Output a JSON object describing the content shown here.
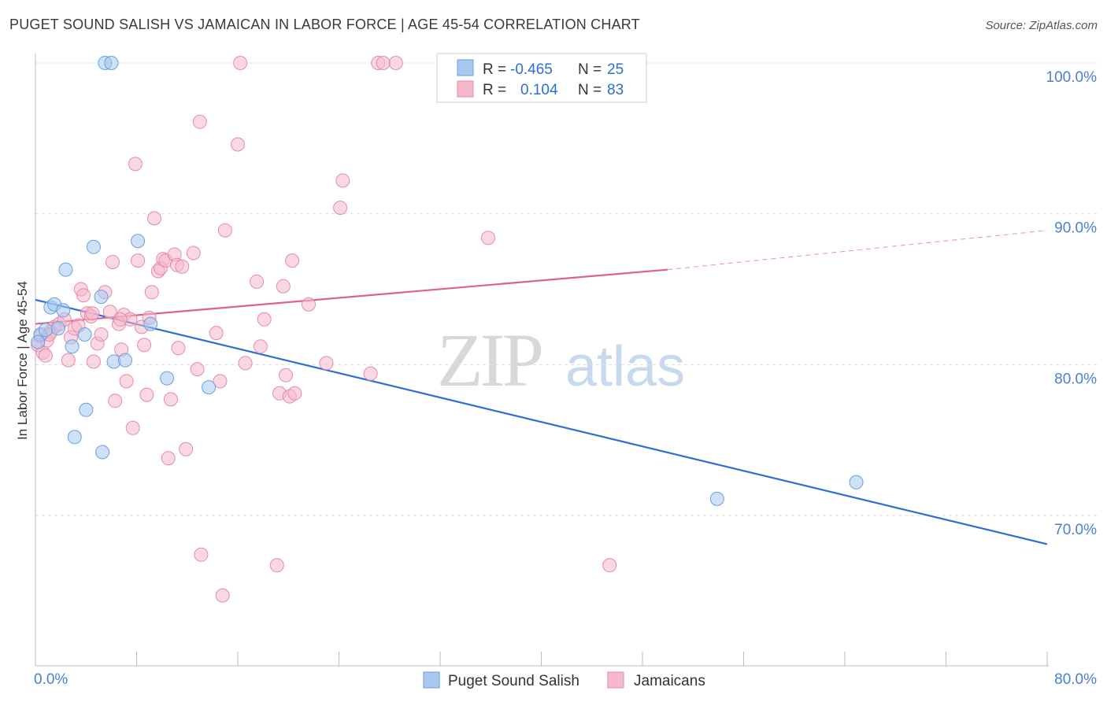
{
  "title": "PUGET SOUND SALISH VS JAMAICAN IN LABOR FORCE | AGE 45-54 CORRELATION CHART",
  "source": "Source: ZipAtlas.com",
  "watermark": {
    "zip": "ZIP",
    "atlas": "atlas"
  },
  "colors": {
    "blue_fill": "#a8c8f0",
    "blue_stroke": "#6a9fe0",
    "blue_line": "#2b6fd4",
    "pink_fill": "#f6b8cc",
    "pink_stroke": "#e88aa8",
    "pink_line": "#e0608c",
    "axis_text": "#4a7fd6",
    "grid": "#dddddd"
  },
  "legend_top": [
    {
      "r_label": "R =",
      "r_value": "-0.465",
      "n_label": "N =",
      "n_value": "25"
    },
    {
      "r_label": "R =",
      "r_value": "0.104",
      "n_label": "N =",
      "n_value": "83"
    }
  ],
  "legend_bottom": [
    "Puget Sound Salish",
    "Jamaicans"
  ],
  "chart_data": {
    "type": "scatter",
    "title": "PUGET SOUND SALISH VS JAMAICAN IN LABOR FORCE | AGE 45-54 CORRELATION CHART",
    "xlabel": "",
    "ylabel": "In Labor Force | Age 45-54",
    "xlim": [
      0,
      80
    ],
    "ylim": [
      61,
      104
    ],
    "x_tick_labels": [
      "0.0%",
      "80.0%"
    ],
    "y_ticks": [
      70,
      80,
      90,
      100
    ],
    "y_tick_labels": [
      "70.0%",
      "80.0%",
      "90.0%",
      "100.0%"
    ],
    "grid": true,
    "legend_placement": "bottom",
    "series": [
      {
        "name": "Puget Sound Salish",
        "color": "#a8c8f0",
        "points": [
          [
            0.4,
            82.0
          ],
          [
            0.8,
            82.3
          ],
          [
            1.2,
            83.8
          ],
          [
            1.5,
            84.0
          ],
          [
            1.8,
            82.4
          ],
          [
            2.2,
            83.6
          ],
          [
            2.4,
            86.3
          ],
          [
            2.9,
            81.2
          ],
          [
            3.1,
            75.2
          ],
          [
            3.9,
            82.0
          ],
          [
            4.0,
            77.0
          ],
          [
            4.6,
            87.8
          ],
          [
            5.2,
            84.5
          ],
          [
            5.3,
            74.2
          ],
          [
            5.5,
            100.0
          ],
          [
            6.0,
            100.0
          ],
          [
            6.2,
            80.2
          ],
          [
            7.1,
            80.3
          ],
          [
            8.1,
            88.2
          ],
          [
            9.1,
            82.7
          ],
          [
            10.4,
            79.1
          ],
          [
            13.7,
            78.5
          ],
          [
            53.9,
            71.1
          ],
          [
            64.9,
            72.2
          ],
          [
            0.2,
            81.5
          ]
        ],
        "trend": {
          "x": [
            0,
            80
          ],
          "y": [
            84.3,
            68.1
          ]
        }
      },
      {
        "name": "Jamaicans",
        "color": "#f6b8cc",
        "points": [
          [
            0.2,
            81.3
          ],
          [
            0.4,
            81.9
          ],
          [
            0.6,
            80.8
          ],
          [
            0.9,
            81.6
          ],
          [
            1.2,
            82.2
          ],
          [
            1.5,
            82.5
          ],
          [
            1.9,
            82.7
          ],
          [
            2.3,
            83.0
          ],
          [
            2.6,
            80.3
          ],
          [
            2.8,
            81.8
          ],
          [
            3.1,
            82.4
          ],
          [
            3.4,
            82.6
          ],
          [
            3.6,
            85.0
          ],
          [
            3.8,
            84.6
          ],
          [
            4.1,
            83.4
          ],
          [
            4.4,
            83.2
          ],
          [
            4.6,
            80.2
          ],
          [
            4.9,
            81.4
          ],
          [
            5.2,
            82.0
          ],
          [
            5.5,
            84.8
          ],
          [
            5.9,
            83.5
          ],
          [
            6.1,
            86.8
          ],
          [
            6.3,
            77.6
          ],
          [
            6.6,
            82.7
          ],
          [
            6.8,
            81.0
          ],
          [
            7.0,
            83.3
          ],
          [
            7.2,
            78.9
          ],
          [
            7.5,
            83.0
          ],
          [
            7.7,
            75.8
          ],
          [
            7.9,
            93.3
          ],
          [
            8.1,
            86.9
          ],
          [
            8.4,
            82.5
          ],
          [
            8.6,
            81.3
          ],
          [
            8.8,
            78.0
          ],
          [
            9.0,
            83.1
          ],
          [
            9.2,
            84.8
          ],
          [
            9.4,
            89.7
          ],
          [
            9.7,
            86.2
          ],
          [
            9.9,
            86.4
          ],
          [
            10.1,
            87.0
          ],
          [
            10.3,
            86.9
          ],
          [
            10.5,
            73.8
          ],
          [
            10.7,
            77.7
          ],
          [
            11.0,
            87.3
          ],
          [
            11.2,
            86.6
          ],
          [
            11.3,
            81.1
          ],
          [
            11.6,
            86.5
          ],
          [
            11.9,
            74.4
          ],
          [
            12.5,
            87.4
          ],
          [
            12.8,
            79.7
          ],
          [
            13.1,
            67.4
          ],
          [
            14.3,
            82.1
          ],
          [
            14.6,
            78.9
          ],
          [
            14.8,
            64.7
          ],
          [
            15.0,
            88.9
          ],
          [
            16.0,
            94.6
          ],
          [
            16.2,
            100.0
          ],
          [
            16.6,
            80.1
          ],
          [
            17.5,
            85.5
          ],
          [
            17.8,
            81.2
          ],
          [
            18.1,
            83.0
          ],
          [
            19.1,
            66.7
          ],
          [
            19.3,
            78.1
          ],
          [
            19.6,
            85.2
          ],
          [
            19.8,
            79.3
          ],
          [
            20.1,
            77.9
          ],
          [
            20.3,
            86.9
          ],
          [
            20.5,
            78.1
          ],
          [
            21.6,
            84.0
          ],
          [
            23.0,
            80.1
          ],
          [
            24.1,
            90.4
          ],
          [
            24.3,
            92.2
          ],
          [
            26.5,
            79.4
          ],
          [
            27.1,
            100.0
          ],
          [
            27.5,
            100.0
          ],
          [
            28.5,
            100.0
          ],
          [
            35.8,
            88.4
          ],
          [
            45.4,
            66.7
          ],
          [
            13.0,
            96.1
          ],
          [
            0.8,
            80.6
          ],
          [
            1.1,
            82.0
          ],
          [
            6.7,
            83.0
          ],
          [
            4.5,
            83.4
          ]
        ],
        "trend": {
          "x": [
            0,
            50
          ],
          "y": [
            82.7,
            86.3
          ],
          "dashed_extension": {
            "x": [
              50,
              80
            ],
            "y": [
              86.3,
              88.9
            ]
          }
        }
      }
    ]
  }
}
